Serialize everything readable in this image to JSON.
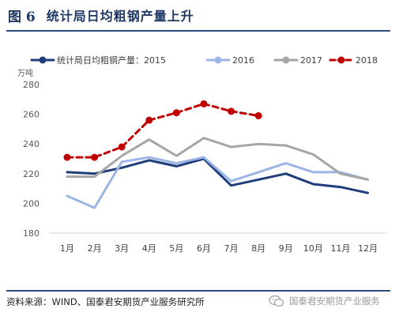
{
  "figure": {
    "label": "图 6",
    "title": "统计局日均粗钢产量上升"
  },
  "footer": {
    "source": "资料来源：WIND、国泰君安期货产业服务研究所",
    "watermark": "国泰君安期货产业服务"
  },
  "chart_data": {
    "type": "line",
    "ylabel": "万吨",
    "ylim": [
      180,
      280
    ],
    "yticks": [
      180,
      200,
      220,
      240,
      260,
      280
    ],
    "categories": [
      "1月",
      "2月",
      "3月",
      "4月",
      "5月",
      "6月",
      "7月",
      "8月",
      "9月",
      "10月",
      "11月",
      "12月"
    ],
    "legend_position": "top",
    "grid": false,
    "series": [
      {
        "name": "统计局日均粗钢产量：2015",
        "color": "#1f3d7a",
        "dashed": false,
        "marker": false,
        "values": [
          221,
          220,
          224,
          229,
          225,
          230,
          212,
          216,
          220,
          213,
          211,
          207
        ]
      },
      {
        "name": "2016",
        "color": "#9db4e6",
        "dashed": false,
        "marker": false,
        "values": [
          205,
          197,
          228,
          231,
          227,
          231,
          215,
          221,
          227,
          221,
          221,
          216
        ]
      },
      {
        "name": "2017",
        "color": "#a6a6a6",
        "dashed": false,
        "marker": false,
        "values": [
          218,
          218,
          232,
          243,
          232,
          244,
          238,
          240,
          239,
          233,
          220,
          216
        ]
      },
      {
        "name": "2018",
        "color": "#c00000",
        "dashed": true,
        "marker": true,
        "values": [
          231,
          231,
          238,
          256,
          261,
          267,
          262,
          259,
          null,
          null,
          null,
          null
        ]
      }
    ]
  }
}
